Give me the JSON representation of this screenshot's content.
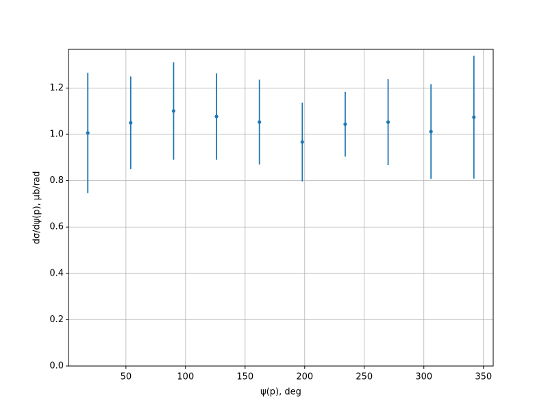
{
  "chart_data": {
    "type": "errorbar",
    "x_label": "ψ(p), deg",
    "y_label": "dσ/dψ(p), μb/rad",
    "series": [
      {
        "color": "#1f77b4",
        "x": [
          18,
          54,
          90,
          126,
          162,
          198,
          234,
          270,
          306,
          342
        ],
        "values": [
          1.006,
          1.05,
          1.101,
          1.077,
          1.053,
          0.967,
          1.044,
          1.053,
          1.012,
          1.074
        ],
        "errors": [
          0.26,
          0.2,
          0.21,
          0.186,
          0.183,
          0.17,
          0.14,
          0.186,
          0.204,
          0.265
        ]
      }
    ],
    "xlim": [
      1.8,
      358.2
    ],
    "xticks": [
      50,
      100,
      150,
      200,
      250,
      300,
      350
    ],
    "ylim": [
      0,
      1.367
    ],
    "yticks": [
      {
        "value": 0,
        "label": "0.0"
      },
      0.2,
      0.4,
      0.6,
      0.8,
      {
        "value": 1,
        "label": "1.0"
      },
      1.2
    ],
    "grid": true
  }
}
